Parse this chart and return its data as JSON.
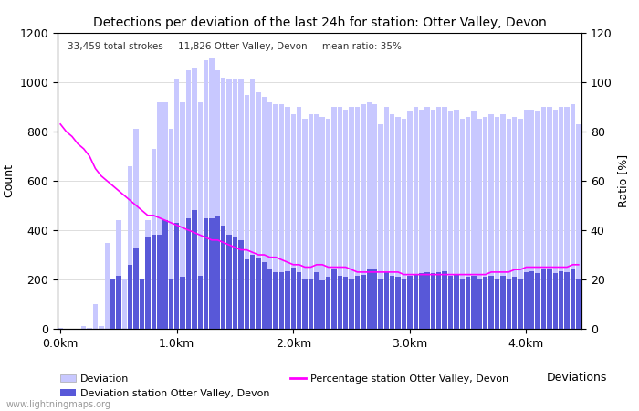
{
  "title": "Detections per deviation of the last 24h for station: Otter Valley, Devon",
  "subtitle": "33,459 total strokes     11,826 Otter Valley, Devon     mean ratio: 35%",
  "xlabel": "Deviations",
  "ylabel_left": "Count",
  "ylabel_right": "Ratio [%]",
  "watermark": "www.lightningmaps.org",
  "xtick_labels": [
    "0.0km",
    "1.0km",
    "2.0km",
    "3.0km",
    "4.0km"
  ],
  "xtick_positions": [
    0,
    20,
    40,
    60,
    80
  ],
  "ylim_left": [
    0,
    1200
  ],
  "ylim_right": [
    0,
    120
  ],
  "yticks_left": [
    0,
    200,
    400,
    600,
    800,
    1000,
    1200
  ],
  "yticks_right": [
    0,
    20,
    40,
    60,
    80,
    100,
    120
  ],
  "deviation_all": [
    2,
    1,
    1,
    1,
    10,
    5,
    100,
    10,
    350,
    130,
    440,
    200,
    660,
    810,
    200,
    440,
    730,
    920,
    920,
    810,
    1010,
    920,
    1050,
    1060,
    920,
    1090,
    1100,
    1050,
    1020,
    1010,
    1010,
    1010,
    950,
    1010,
    960,
    940,
    920,
    910,
    910,
    900,
    870,
    900,
    850,
    870,
    870,
    860,
    850,
    900,
    900,
    890,
    900,
    900,
    910,
    920,
    910,
    830,
    900,
    870,
    860,
    850,
    880,
    900,
    890,
    900,
    890,
    900,
    900,
    880,
    890,
    850,
    860,
    880,
    850,
    860,
    870,
    860,
    870,
    850,
    860,
    850,
    890,
    890,
    880,
    900,
    900,
    890,
    900,
    900,
    910,
    830
  ],
  "deviation_station": [
    0,
    0,
    0,
    0,
    0,
    0,
    0,
    0,
    0,
    200,
    215,
    0,
    260,
    325,
    200,
    370,
    380,
    380,
    440,
    200,
    430,
    210,
    450,
    480,
    215,
    450,
    450,
    460,
    420,
    380,
    370,
    360,
    280,
    300,
    285,
    270,
    240,
    230,
    230,
    235,
    250,
    230,
    200,
    200,
    230,
    195,
    210,
    245,
    215,
    210,
    205,
    215,
    220,
    240,
    245,
    200,
    230,
    215,
    210,
    205,
    215,
    220,
    225,
    230,
    225,
    230,
    235,
    215,
    220,
    200,
    210,
    215,
    200,
    210,
    215,
    205,
    215,
    200,
    210,
    200,
    230,
    235,
    225,
    240,
    245,
    225,
    235,
    230,
    240,
    200
  ],
  "ratio_start_x": 0,
  "ratio": [
    83,
    80,
    78,
    75,
    73,
    70,
    65,
    62,
    60,
    58,
    56,
    54,
    52,
    50,
    48,
    46,
    46,
    45,
    44,
    43,
    42,
    41,
    40,
    39,
    38,
    37,
    36,
    36,
    35,
    34,
    33,
    32,
    32,
    31,
    30,
    30,
    29,
    29,
    28,
    27,
    26,
    26,
    25,
    25,
    26,
    26,
    25,
    25,
    25,
    25,
    24,
    23,
    23,
    23,
    23,
    23,
    23,
    23,
    23,
    22,
    22,
    22,
    22,
    22,
    22,
    22,
    22,
    22,
    22,
    22,
    22,
    22,
    22,
    22,
    23,
    23,
    23,
    23,
    24,
    24,
    25,
    25,
    25,
    25,
    25,
    25,
    25,
    25,
    26,
    26
  ],
  "color_deviation": "#c8c8ff",
  "color_station": "#5858d8",
  "color_ratio": "#ff00ff",
  "legend_deviation": "Deviation",
  "legend_station": "Deviation station Otter Valley, Devon",
  "legend_ratio": "Percentage station Otter Valley, Devon",
  "bg_color": "#ffffff",
  "grid_color": "#d0d0d0"
}
